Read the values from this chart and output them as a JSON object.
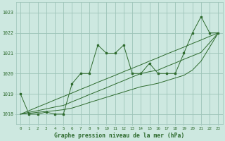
{
  "x": [
    0,
    1,
    2,
    3,
    4,
    5,
    6,
    7,
    8,
    9,
    10,
    11,
    12,
    13,
    14,
    15,
    16,
    17,
    18,
    19,
    20,
    21,
    22,
    23
  ],
  "y_main": [
    1019,
    1018,
    1018,
    1018.1,
    1018,
    1018,
    1019.5,
    1020,
    1020,
    1021.4,
    1021,
    1021,
    1021.4,
    1020,
    1020,
    1020.5,
    1020,
    1020,
    1020,
    1021,
    1022,
    1022.8,
    1022,
    1022
  ],
  "y_trend1": [
    1018,
    1018.17,
    1018.35,
    1018.52,
    1018.7,
    1018.87,
    1019.04,
    1019.22,
    1019.39,
    1019.57,
    1019.74,
    1019.91,
    1020.09,
    1020.26,
    1020.43,
    1020.61,
    1020.78,
    1020.96,
    1021.13,
    1021.3,
    1021.48,
    1021.65,
    1021.83,
    1022.0
  ],
  "y_trend2": [
    1018,
    1018.09,
    1018.17,
    1018.26,
    1018.35,
    1018.43,
    1018.61,
    1018.78,
    1018.96,
    1019.13,
    1019.3,
    1019.48,
    1019.65,
    1019.83,
    1020.0,
    1020.09,
    1020.17,
    1020.35,
    1020.52,
    1020.7,
    1020.87,
    1021.04,
    1021.52,
    1022.0
  ],
  "y_trend3": [
    1018,
    1018.04,
    1018.09,
    1018.13,
    1018.17,
    1018.22,
    1018.3,
    1018.43,
    1018.57,
    1018.7,
    1018.83,
    1018.96,
    1019.09,
    1019.22,
    1019.35,
    1019.43,
    1019.52,
    1019.65,
    1019.78,
    1019.91,
    1020.17,
    1020.61,
    1021.3,
    1022.0
  ],
  "line_color": "#2d6a2d",
  "bg_color": "#cde8e0",
  "grid_color": "#9dc4b8",
  "title": "Graphe pression niveau de la mer (hPa)",
  "ylim": [
    1017.5,
    1023.5
  ],
  "xlim": [
    -0.5,
    23.5
  ],
  "yticks": [
    1018,
    1019,
    1020,
    1021,
    1022,
    1023
  ],
  "xticks": [
    0,
    1,
    2,
    3,
    4,
    5,
    6,
    7,
    8,
    9,
    10,
    11,
    12,
    13,
    14,
    15,
    16,
    17,
    18,
    19,
    20,
    21,
    22,
    23
  ]
}
